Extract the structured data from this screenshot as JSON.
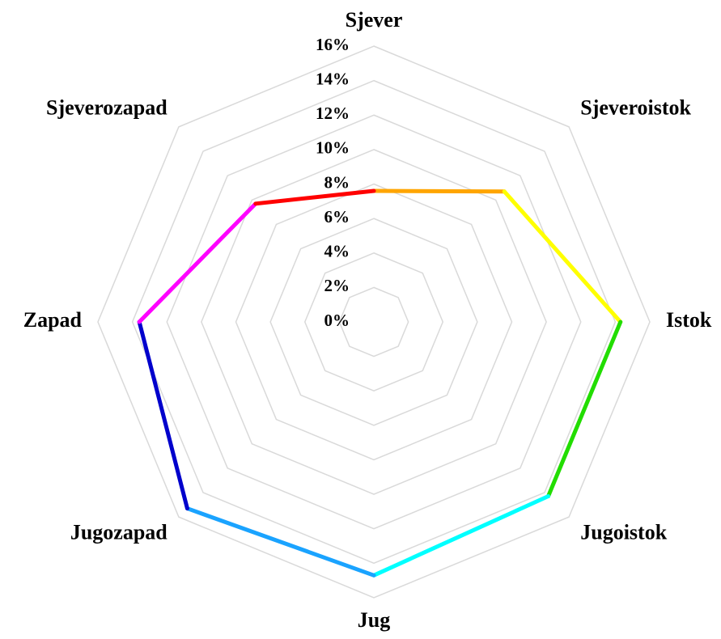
{
  "chart_data": {
    "type": "radar",
    "categories": [
      "Sjever",
      "Sjeveroistok",
      "Istok",
      "Jugoistok",
      "Jug",
      "Jugozapad",
      "Zapad",
      "Sjeverozapad"
    ],
    "values": [
      7.6,
      10.7,
      14.3,
      14.3,
      14.7,
      15.3,
      13.6,
      9.7
    ],
    "colors": [
      "#ffa500",
      "#ffff00",
      "#22dd00",
      "#00ffff",
      "#1aa3ff",
      "#0000cc",
      "#ff00ff",
      "#ff0000"
    ],
    "ylim": [
      0,
      16
    ],
    "yticks": [
      {
        "value": 0,
        "label": "0%"
      },
      {
        "value": 2,
        "label": "2%"
      },
      {
        "value": 4,
        "label": "4%"
      },
      {
        "value": 6,
        "label": "6%"
      },
      {
        "value": 8,
        "label": "8%"
      },
      {
        "value": 10,
        "label": "10%"
      },
      {
        "value": 12,
        "label": "12%"
      },
      {
        "value": 14,
        "label": "14%"
      },
      {
        "value": 16,
        "label": "16%"
      }
    ],
    "grid": true
  }
}
